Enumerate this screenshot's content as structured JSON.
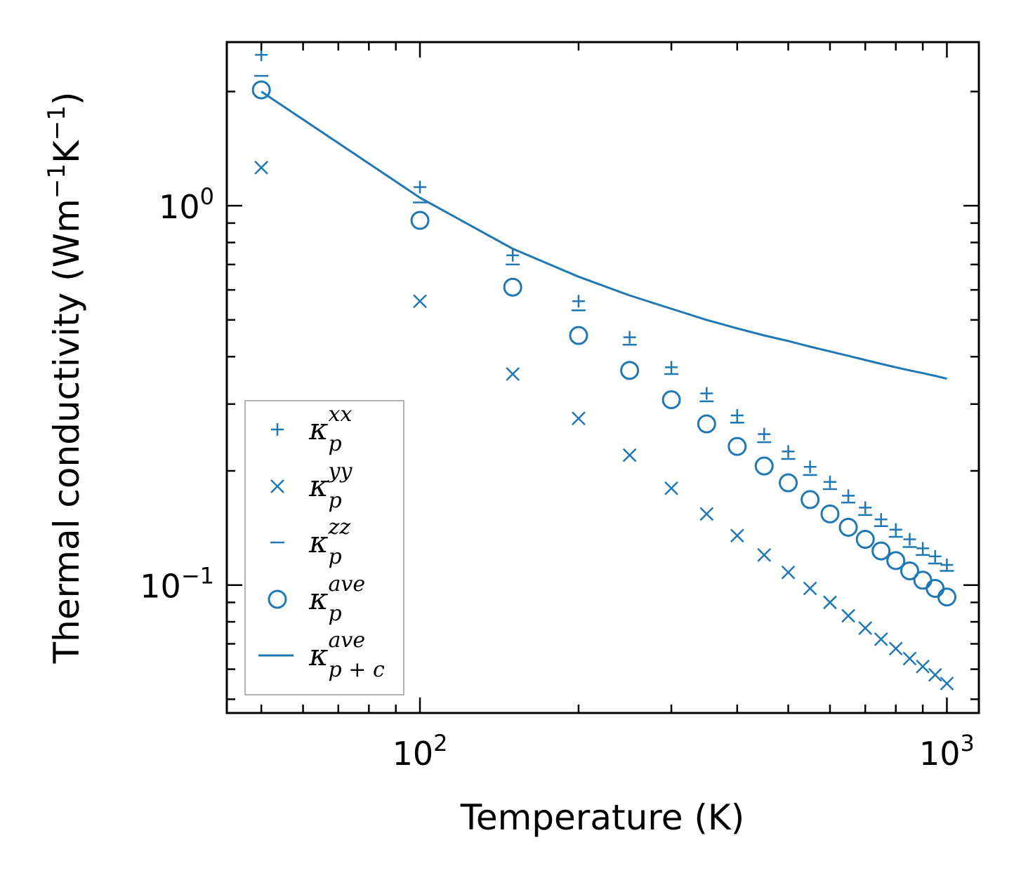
{
  "chart_data": {
    "type": "scatter",
    "xscale": "log",
    "yscale": "log",
    "xlabel": "Temperature (K)",
    "ylabel": {
      "prefix": "Thermal conductivity (Wm",
      "sup1": "−1",
      "middle": "K",
      "sup2": "−1",
      "suffix": ")"
    },
    "xlim": [
      43,
      1150
    ],
    "ylim": [
      0.046,
      2.7
    ],
    "color": "#1f77b4",
    "x_major_ticks": [
      {
        "value": 100,
        "base": "10",
        "exp": "2"
      },
      {
        "value": 1000,
        "base": "10",
        "exp": "3"
      }
    ],
    "y_major_ticks": [
      {
        "value": 1.0,
        "base": "10",
        "exp": "0"
      },
      {
        "value": 0.1,
        "base": "10",
        "exp": "−1"
      }
    ],
    "x": [
      50,
      100,
      150,
      200,
      250,
      300,
      350,
      400,
      450,
      500,
      550,
      600,
      650,
      700,
      750,
      800,
      850,
      900,
      950,
      1000
    ],
    "series": [
      {
        "name": "kappa_p_xx",
        "marker": "plus",
        "values": [
          2.5,
          1.12,
          0.74,
          0.56,
          0.45,
          0.375,
          0.32,
          0.28,
          0.25,
          0.225,
          0.205,
          0.187,
          0.172,
          0.16,
          0.149,
          0.14,
          0.132,
          0.125,
          0.119,
          0.113
        ]
      },
      {
        "name": "kappa_p_yy",
        "marker": "x",
        "values": [
          1.26,
          0.56,
          0.36,
          0.275,
          0.22,
          0.18,
          0.154,
          0.135,
          0.12,
          0.108,
          0.098,
          0.09,
          0.083,
          0.077,
          0.072,
          0.068,
          0.064,
          0.061,
          0.058,
          0.055
        ]
      },
      {
        "name": "kappa_p_zz",
        "marker": "hline",
        "values": [
          2.2,
          1.02,
          0.7,
          0.53,
          0.43,
          0.36,
          0.305,
          0.268,
          0.238,
          0.215,
          0.195,
          0.179,
          0.165,
          0.153,
          0.143,
          0.134,
          0.126,
          0.12,
          0.114,
          0.109
        ]
      },
      {
        "name": "kappa_p_ave",
        "marker": "circle",
        "values": [
          2.02,
          0.915,
          0.61,
          0.455,
          0.368,
          0.308,
          0.266,
          0.232,
          0.206,
          0.186,
          0.168,
          0.154,
          0.142,
          0.132,
          0.123,
          0.116,
          0.109,
          0.103,
          0.098,
          0.093
        ]
      },
      {
        "name": "kappa_pc_ave",
        "marker": "line",
        "values": [
          2.0,
          1.05,
          0.77,
          0.65,
          0.58,
          0.535,
          0.5,
          0.475,
          0.455,
          0.44,
          0.425,
          0.413,
          0.402,
          0.392,
          0.383,
          0.375,
          0.368,
          0.362,
          0.356,
          0.35
        ]
      }
    ],
    "legend": {
      "position": "lower-left",
      "entries": [
        {
          "symbol": "κ",
          "sub": "p",
          "sup": "xx",
          "marker": "plus"
        },
        {
          "symbol": "κ",
          "sub": "p",
          "sup": "yy",
          "marker": "x"
        },
        {
          "symbol": "κ",
          "sub": "p",
          "sup": "zz",
          "marker": "hline"
        },
        {
          "symbol": "κ",
          "sub": "p",
          "sup": "ave",
          "marker": "circle"
        },
        {
          "symbol": "κ",
          "sub": "p + c",
          "sup": "ave",
          "marker": "line"
        }
      ]
    }
  }
}
